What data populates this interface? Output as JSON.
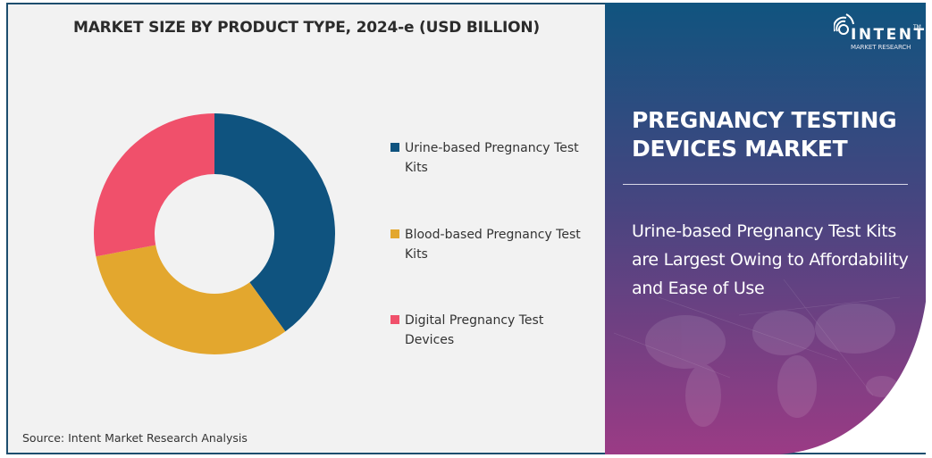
{
  "chart": {
    "title": "MARKET SIZE BY PRODUCT TYPE, 2024-e (USD BILLION)",
    "source": "Source: Intent Market Research Analysis"
  },
  "legend": [
    {
      "label": "Urine-based Pregnancy Test Kits",
      "color": "#0f537f"
    },
    {
      "label": "Blood-based Pregnancy Test Kits",
      "color": "#e3a72e"
    },
    {
      "label": "Digital Pregnancy Test Devices",
      "color": "#f0506b"
    }
  ],
  "side_panel": {
    "logo": {
      "name": "INTENT",
      "tm": "TM",
      "subtitle": "MARKET RESEARCH",
      "icon": "signal-broadcast-icon"
    },
    "title": "PREGNANCY TESTING DEVICES MARKET",
    "insight": "Urine-based Pregnancy Test Kits are Largest Owing to Affordability and Ease of Use",
    "colors": {
      "top": "#10547f",
      "middle": "#474580",
      "bottom": "#9b3b85"
    }
  },
  "chart_data": {
    "type": "pie",
    "subtype": "donut",
    "title": "MARKET SIZE BY PRODUCT TYPE, 2024-e (USD BILLION)",
    "categories": [
      "Urine-based Pregnancy Test Kits",
      "Blood-based Pregnancy Test Kits",
      "Digital Pregnancy Test Devices"
    ],
    "values": [
      40,
      32,
      28
    ],
    "unit": "% share (estimated from slice angles)",
    "colors": [
      "#0f537f",
      "#e3a72e",
      "#f0506b"
    ],
    "start_angle": "12 o'clock, clockwise",
    "legend_position": "right",
    "data_labels": false
  }
}
